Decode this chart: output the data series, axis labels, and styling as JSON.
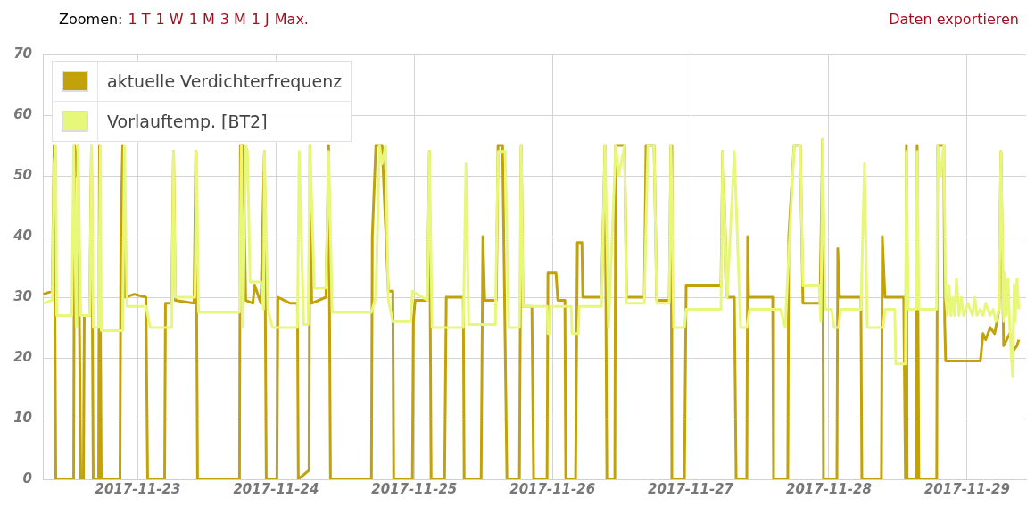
{
  "chart_data": {
    "type": "line",
    "annotations": [
      "Zoomen:",
      "1 T",
      "1 W",
      "1 M",
      "3 M",
      "1 J",
      "Max.",
      "Daten exportieren"
    ],
    "xlim": [
      "2017-11-22T07:30",
      "2017-11-29T10:15"
    ],
    "xticks": [
      "2017-11-23",
      "2017-11-24",
      "2017-11-25",
      "2017-11-26",
      "2017-11-27",
      "2017-11-28",
      "2017-11-29"
    ],
    "ylim": [
      0,
      70
    ],
    "yticks": [
      0,
      10,
      20,
      30,
      40,
      50,
      60,
      70
    ],
    "grid": true,
    "legend": "top left",
    "marker": "none",
    "line_style": "solid",
    "series": [
      {
        "name": "aktuelle Verdichterfrequenz",
        "color": "#c2a20a",
        "x": [
          "2017-11-22T07:35",
          "2017-11-22T09:08",
          "2017-11-22T09:27",
          "2017-11-22T09:45",
          "2017-11-22T12:51",
          "2017-11-22T13:00",
          "2017-11-22T13:18",
          "2017-11-22T13:36",
          "2017-11-22T14:05",
          "2017-11-22T14:33",
          "2017-11-22T14:42",
          "2017-11-22T15:38",
          "2017-11-22T15:57",
          "2017-11-22T16:15",
          "2017-11-22T17:11",
          "2017-11-22T17:20",
          "2017-11-22T17:39",
          "2017-11-22T20:54",
          "2017-11-22T21:03",
          "2017-11-22T21:22",
          "2017-11-22T21:50",
          "2017-11-22T23:22",
          "2017-11-23T01:24",
          "2017-11-23T01:42",
          "2017-11-23T04:39",
          "2017-11-23T04:48",
          "2017-11-23T05:53",
          "2017-11-23T06:12",
          "2017-11-23T06:30",
          "2017-11-23T09:45",
          "2017-11-23T10:04",
          "2017-11-23T10:22",
          "2017-11-23T17:39",
          "2017-11-23T17:48",
          "2017-11-23T18:16",
          "2017-11-23T18:44",
          "2017-11-23T19:58",
          "2017-11-23T20:17",
          "2017-11-23T21:22",
          "2017-11-23T21:59",
          "2017-11-23T22:18",
          "2017-11-24T00:09",
          "2017-11-24T00:19",
          "2017-11-24T02:29",
          "2017-11-24T03:43",
          "2017-11-24T03:52",
          "2017-11-24T05:44",
          "2017-11-24T05:53",
          "2017-11-24T06:12",
          "2017-11-24T08:40",
          "2017-11-24T09:08",
          "2017-11-24T09:27",
          "2017-11-24T16:34",
          "2017-11-24T16:43",
          "2017-11-24T17:20",
          "2017-11-24T18:25",
          "2017-11-24T19:30",
          "2017-11-24T20:17",
          "2017-11-24T20:26",
          "2017-11-24T23:41",
          "2017-11-24T23:51",
          "2017-11-25T00:09",
          "2017-11-25T02:19",
          "2017-11-25T02:38",
          "2017-11-25T02:56",
          "2017-11-25T05:16",
          "2017-11-25T05:34",
          "2017-11-25T08:31",
          "2017-11-25T08:40",
          "2017-11-25T11:37",
          "2017-11-25T11:55",
          "2017-11-25T12:14",
          "2017-11-25T14:15",
          "2017-11-25T14:33",
          "2017-11-25T15:20",
          "2017-11-25T16:06",
          "2017-11-25T18:16",
          "2017-11-25T18:35",
          "2017-11-25T18:53",
          "2017-11-25T20:26",
          "2017-11-25T20:44",
          "2017-11-25T23:04",
          "2017-11-25T23:13",
          "2017-11-26T00:37",
          "2017-11-26T00:56",
          "2017-11-26T02:10",
          "2017-11-26T02:19",
          "2017-11-26T04:01",
          "2017-11-26T04:20",
          "2017-11-26T05:07",
          "2017-11-26T05:16",
          "2017-11-26T08:31",
          "2017-11-26T09:08",
          "2017-11-26T09:27",
          "2017-11-26T10:50",
          "2017-11-26T10:59",
          "2017-11-26T12:32",
          "2017-11-26T12:51",
          "2017-11-26T15:57",
          "2017-11-26T16:15",
          "2017-11-26T17:39",
          "2017-11-26T18:07",
          "2017-11-26T20:17",
          "2017-11-26T20:35",
          "2017-11-26T20:44",
          "2017-11-26T22:55",
          "2017-11-26T23:13",
          "2017-11-27T05:16",
          "2017-11-27T05:34",
          "2017-11-27T06:21",
          "2017-11-27T07:35",
          "2017-11-27T07:54",
          "2017-11-27T09:45",
          "2017-11-27T09:54",
          "2017-11-27T10:04",
          "2017-11-27T14:15",
          "2017-11-27T14:24",
          "2017-11-27T16:52",
          "2017-11-27T17:02",
          "2017-11-27T17:58",
          "2017-11-27T19:02",
          "2017-11-27T19:30",
          "2017-11-27T22:27",
          "2017-11-27T22:55",
          "2017-11-27T23:04",
          "2017-11-28T01:24",
          "2017-11-28T01:33",
          "2017-11-28T01:51",
          "2017-11-28T05:34",
          "2017-11-28T05:44",
          "2017-11-28T09:08",
          "2017-11-28T09:17",
          "2017-11-28T09:45",
          "2017-11-28T13:00",
          "2017-11-28T13:18",
          "2017-11-28T13:28",
          "2017-11-28T13:36",
          "2017-11-28T15:10",
          "2017-11-28T15:20",
          "2017-11-28T15:38",
          "2017-11-28T18:44",
          "2017-11-28T18:53",
          "2017-11-28T19:58",
          "2017-11-28T20:07",
          "2017-11-28T20:17",
          "2017-11-29T02:19",
          "2017-11-29T02:47",
          "2017-11-29T03:15",
          "2017-11-29T04:01",
          "2017-11-29T04:48",
          "2017-11-29T05:34",
          "2017-11-29T05:53",
          "2017-11-29T06:21",
          "2017-11-29T07:26",
          "2017-11-29T07:54",
          "2017-11-29T08:40",
          "2017-11-29T08:59"
        ],
        "values": [
          30.5,
          31,
          55,
          0,
          0,
          55,
          50,
          55,
          0,
          0,
          27,
          27,
          55,
          0,
          0,
          55,
          0,
          0,
          40,
          55,
          30,
          30.5,
          30,
          0,
          0,
          29,
          29,
          54,
          29.5,
          29,
          54,
          0,
          0,
          55,
          55,
          29.5,
          29,
          32,
          29,
          54,
          0,
          0,
          30,
          29,
          29,
          0,
          1.5,
          55,
          29,
          30,
          55,
          0,
          0,
          40,
          55,
          55,
          31,
          31,
          0,
          0,
          26,
          29.5,
          29.5,
          54,
          0,
          0,
          30,
          30,
          0,
          0,
          40,
          29.5,
          29.5,
          55,
          55,
          0,
          0,
          55,
          28.5,
          28.5,
          0,
          0,
          34,
          34,
          29.5,
          29.5,
          0,
          0,
          39,
          39,
          30,
          30,
          55,
          0,
          0,
          55,
          55,
          30,
          30,
          55,
          55,
          29.5,
          29.5,
          55,
          0,
          0,
          32,
          32,
          54,
          30,
          30,
          0,
          0,
          40,
          30,
          30,
          0,
          0,
          40,
          55,
          55,
          29,
          29,
          56,
          0,
          0,
          38,
          30,
          30,
          0,
          0,
          40,
          30,
          30,
          0,
          55,
          0,
          0,
          55,
          0,
          0,
          55,
          55,
          26,
          19.5,
          19.5,
          24,
          23,
          25,
          24,
          28,
          54,
          22,
          24,
          21,
          22,
          23
        ]
      },
      {
        "name": "Vorlauftemp. [BT2]",
        "color": "#e6f77a",
        "x": [
          "2017-11-22T07:35",
          "2017-11-22T09:08",
          "2017-11-22T09:27",
          "2017-11-22T09:45",
          "2017-11-22T09:55",
          "2017-11-22T12:32",
          "2017-11-22T12:51",
          "2017-11-22T13:18",
          "2017-11-22T13:36",
          "2017-11-22T14:05",
          "2017-11-22T15:38",
          "2017-11-22T15:57",
          "2017-11-22T16:15",
          "2017-11-22T17:11",
          "2017-11-22T17:30",
          "2017-11-22T17:39",
          "2017-11-22T21:22",
          "2017-11-22T21:40",
          "2017-11-22T22:08",
          "2017-11-23T01:24",
          "2017-11-23T02:10",
          "2017-11-23T05:53",
          "2017-11-23T06:12",
          "2017-11-23T06:30",
          "2017-11-23T09:54",
          "2017-11-23T10:13",
          "2017-11-23T10:32",
          "2017-11-23T17:39",
          "2017-11-23T17:58",
          "2017-11-23T18:16",
          "2017-11-23T18:44",
          "2017-11-23T19:02",
          "2017-11-23T19:30",
          "2017-11-23T21:22",
          "2017-11-23T21:50",
          "2017-11-23T21:59",
          "2017-11-23T22:36",
          "2017-11-23T23:23",
          "2017-11-24T03:43",
          "2017-11-24T04:01",
          "2017-11-24T04:48",
          "2017-11-24T05:34",
          "2017-11-24T05:53",
          "2017-11-24T06:40",
          "2017-11-24T08:40",
          "2017-11-24T09:08",
          "2017-11-24T09:45",
          "2017-11-24T16:34",
          "2017-11-24T17:20",
          "2017-11-24T17:58",
          "2017-11-24T18:25",
          "2017-11-24T19:02",
          "2017-11-24T19:30",
          "2017-11-24T20:17",
          "2017-11-24T23:22",
          "2017-11-24T23:41",
          "2017-11-25T02:19",
          "2017-11-25T02:38",
          "2017-11-25T03:06",
          "2017-11-25T08:31",
          "2017-11-25T08:59",
          "2017-11-25T09:27",
          "2017-11-25T14:05",
          "2017-11-25T14:33",
          "2017-11-25T15:20",
          "2017-11-25T15:47",
          "2017-11-25T16:25",
          "2017-11-25T18:16",
          "2017-11-25T18:35",
          "2017-11-25T18:53",
          "2017-11-25T23:04",
          "2017-11-25T23:13",
          "2017-11-25T23:32",
          "2017-11-25T23:41",
          "2017-11-26T03:15",
          "2017-11-26T03:24",
          "2017-11-26T04:30",
          "2017-11-26T04:39",
          "2017-11-26T08:31",
          "2017-11-26T09:08",
          "2017-11-26T09:45",
          "2017-11-26T10:59",
          "2017-11-26T11:30",
          "2017-11-26T12:32",
          "2017-11-26T12:51",
          "2017-11-26T15:57",
          "2017-11-26T16:34",
          "2017-11-26T17:39",
          "2017-11-26T18:07",
          "2017-11-26T20:17",
          "2017-11-26T20:35",
          "2017-11-26T21:03",
          "2017-11-26T22:55",
          "2017-11-26T23:13",
          "2017-11-27T05:16",
          "2017-11-27T05:34",
          "2017-11-27T06:21",
          "2017-11-27T07:35",
          "2017-11-27T08:40",
          "2017-11-27T09:45",
          "2017-11-27T10:13",
          "2017-11-27T15:38",
          "2017-11-27T16:25",
          "2017-11-27T17:58",
          "2017-11-27T19:02",
          "2017-11-27T19:30",
          "2017-11-27T22:18",
          "2017-11-27T22:36",
          "2017-11-27T22:55",
          "2017-11-27T23:23",
          "2017-11-28T00:28",
          "2017-11-28T00:56",
          "2017-11-28T01:42",
          "2017-11-28T02:01",
          "2017-11-28T05:34",
          "2017-11-28T06:12",
          "2017-11-28T06:40",
          "2017-11-28T09:27",
          "2017-11-28T09:45",
          "2017-11-28T11:27",
          "2017-11-28T11:37",
          "2017-11-28T13:18",
          "2017-11-28T13:28",
          "2017-11-28T13:47",
          "2017-11-28T15:10",
          "2017-11-28T15:20",
          "2017-11-28T15:38",
          "2017-11-28T18:44",
          "2017-11-28T18:53",
          "2017-11-28T19:20",
          "2017-11-28T19:58",
          "2017-11-28T20:17",
          "2017-11-28T20:35",
          "2017-11-28T20:50",
          "2017-11-28T21:13",
          "2017-11-28T21:30",
          "2017-11-28T21:50",
          "2017-11-28T22:10",
          "2017-11-28T22:36",
          "2017-11-28T23:00",
          "2017-11-28T23:23",
          "2017-11-29T00:09",
          "2017-11-29T00:56",
          "2017-11-29T01:20",
          "2017-11-29T01:42",
          "2017-11-29T02:19",
          "2017-11-29T02:47",
          "2017-11-29T03:15",
          "2017-11-29T04:01",
          "2017-11-29T04:30",
          "2017-11-29T05:00",
          "2017-11-29T05:34",
          "2017-11-29T05:53",
          "2017-11-29T06:21",
          "2017-11-29T06:35",
          "2017-11-29T06:49",
          "2017-11-29T07:07",
          "2017-11-29T07:26",
          "2017-11-29T07:54",
          "2017-11-29T08:10",
          "2017-11-29T08:22",
          "2017-11-29T08:40",
          "2017-11-29T08:59"
        ],
        "values": [
          29,
          29.5,
          52,
          55,
          27,
          27,
          55,
          25,
          55,
          27,
          27,
          55,
          25,
          25,
          55,
          24.5,
          24.5,
          55,
          28.5,
          28.5,
          25,
          25,
          54,
          30,
          30,
          54,
          27.5,
          27.5,
          55,
          25,
          55,
          54,
          32.5,
          32.5,
          28,
          54,
          28,
          25,
          25,
          54,
          25.5,
          25.5,
          55,
          31.5,
          31.5,
          54,
          27.5,
          27.5,
          30,
          55,
          52,
          55,
          29.5,
          26,
          26,
          31,
          29.5,
          54,
          25,
          25,
          52,
          25.5,
          25.5,
          54,
          54,
          54,
          25,
          25,
          55,
          28.5,
          28.5,
          24,
          24,
          28.5,
          28.5,
          24,
          24,
          28.5,
          28.5,
          55,
          25,
          55,
          50,
          55,
          29,
          29,
          55,
          55,
          29,
          29,
          55,
          25,
          25,
          28,
          28,
          54,
          30,
          54,
          25,
          25,
          28,
          28,
          25,
          55,
          55,
          32,
          32,
          26,
          56,
          28,
          28,
          25,
          25,
          28,
          28,
          52,
          25,
          25,
          28,
          28,
          19,
          19,
          54,
          28,
          28,
          54,
          28,
          28,
          55,
          50,
          55,
          30,
          27,
          32,
          27,
          30,
          27,
          33,
          27,
          30,
          27,
          29,
          27,
          30,
          27,
          28,
          27,
          29,
          27,
          28,
          26,
          28,
          54,
          26,
          34,
          27,
          33,
          25,
          17,
          32,
          26,
          33,
          28
        ]
      }
    ]
  }
}
